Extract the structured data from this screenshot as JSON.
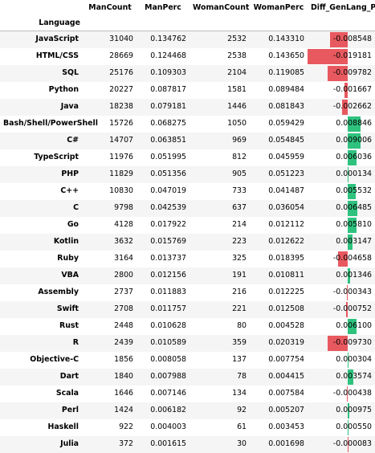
{
  "columns": [
    "ManCount",
    "ManPerc",
    "WomanCount",
    "WomanPerc",
    "Diff_GenLang_Perc"
  ],
  "index_name": "Language",
  "bar_colors": {
    "negative": "#e8595f",
    "positive": "#2ec27e"
  },
  "diff_scale_max": 0.019181,
  "rows": [
    {
      "lang": "JavaScript",
      "mc": "31040",
      "mp": "0.134762",
      "wc": "2532",
      "wp": "0.143310",
      "diff": "-0.008548",
      "d": -0.008548
    },
    {
      "lang": "HTML/CSS",
      "mc": "28669",
      "mp": "0.124468",
      "wc": "2538",
      "wp": "0.143650",
      "diff": "-0.019181",
      "d": -0.019181
    },
    {
      "lang": "SQL",
      "mc": "25176",
      "mp": "0.109303",
      "wc": "2104",
      "wp": "0.119085",
      "diff": "-0.009782",
      "d": -0.009782
    },
    {
      "lang": "Python",
      "mc": "20227",
      "mp": "0.087817",
      "wc": "1581",
      "wp": "0.089484",
      "diff": "-0.001667",
      "d": -0.001667
    },
    {
      "lang": "Java",
      "mc": "18238",
      "mp": "0.079181",
      "wc": "1446",
      "wp": "0.081843",
      "diff": "-0.002662",
      "d": -0.002662
    },
    {
      "lang": "Bash/Shell/PowerShell",
      "mc": "15726",
      "mp": "0.068275",
      "wc": "1050",
      "wp": "0.059429",
      "diff": "0.008846",
      "d": 0.008846
    },
    {
      "lang": "C#",
      "mc": "14707",
      "mp": "0.063851",
      "wc": "969",
      "wp": "0.054845",
      "diff": "0.009006",
      "d": 0.009006
    },
    {
      "lang": "TypeScript",
      "mc": "11976",
      "mp": "0.051995",
      "wc": "812",
      "wp": "0.045959",
      "diff": "0.006036",
      "d": 0.006036
    },
    {
      "lang": "PHP",
      "mc": "11829",
      "mp": "0.051356",
      "wc": "905",
      "wp": "0.051223",
      "diff": "0.000134",
      "d": 0.000134
    },
    {
      "lang": "C++",
      "mc": "10830",
      "mp": "0.047019",
      "wc": "733",
      "wp": "0.041487",
      "diff": "0.005532",
      "d": 0.005532
    },
    {
      "lang": "C",
      "mc": "9798",
      "mp": "0.042539",
      "wc": "637",
      "wp": "0.036054",
      "diff": "0.006485",
      "d": 0.006485
    },
    {
      "lang": "Go",
      "mc": "4128",
      "mp": "0.017922",
      "wc": "214",
      "wp": "0.012112",
      "diff": "0.005810",
      "d": 0.00581
    },
    {
      "lang": "Kotlin",
      "mc": "3632",
      "mp": "0.015769",
      "wc": "223",
      "wp": "0.012622",
      "diff": "0.003147",
      "d": 0.003147
    },
    {
      "lang": "Ruby",
      "mc": "3164",
      "mp": "0.013737",
      "wc": "325",
      "wp": "0.018395",
      "diff": "-0.004658",
      "d": -0.004658
    },
    {
      "lang": "VBA",
      "mc": "2800",
      "mp": "0.012156",
      "wc": "191",
      "wp": "0.010811",
      "diff": "0.001346",
      "d": 0.001346
    },
    {
      "lang": "Assembly",
      "mc": "2737",
      "mp": "0.011883",
      "wc": "216",
      "wp": "0.012225",
      "diff": "-0.000343",
      "d": -0.000343
    },
    {
      "lang": "Swift",
      "mc": "2708",
      "mp": "0.011757",
      "wc": "221",
      "wp": "0.012508",
      "diff": "-0.000752",
      "d": -0.000752
    },
    {
      "lang": "Rust",
      "mc": "2448",
      "mp": "0.010628",
      "wc": "80",
      "wp": "0.004528",
      "diff": "0.006100",
      "d": 0.0061
    },
    {
      "lang": "R",
      "mc": "2439",
      "mp": "0.010589",
      "wc": "359",
      "wp": "0.020319",
      "diff": "-0.009730",
      "d": -0.00973
    },
    {
      "lang": "Objective-C",
      "mc": "1856",
      "mp": "0.008058",
      "wc": "137",
      "wp": "0.007754",
      "diff": "0.000304",
      "d": 0.000304
    },
    {
      "lang": "Dart",
      "mc": "1840",
      "mp": "0.007988",
      "wc": "78",
      "wp": "0.004415",
      "diff": "0.003574",
      "d": 0.003574
    },
    {
      "lang": "Scala",
      "mc": "1646",
      "mp": "0.007146",
      "wc": "134",
      "wp": "0.007584",
      "diff": "-0.000438",
      "d": -0.000438
    },
    {
      "lang": "Perl",
      "mc": "1424",
      "mp": "0.006182",
      "wc": "92",
      "wp": "0.005207",
      "diff": "0.000975",
      "d": 0.000975
    },
    {
      "lang": "Haskell",
      "mc": "922",
      "mp": "0.004003",
      "wc": "61",
      "wp": "0.003453",
      "diff": "0.000550",
      "d": 0.00055
    },
    {
      "lang": "Julia",
      "mc": "372",
      "mp": "0.001615",
      "wc": "30",
      "wp": "0.001698",
      "diff": "-0.000083",
      "d": -8.3e-05
    }
  ]
}
